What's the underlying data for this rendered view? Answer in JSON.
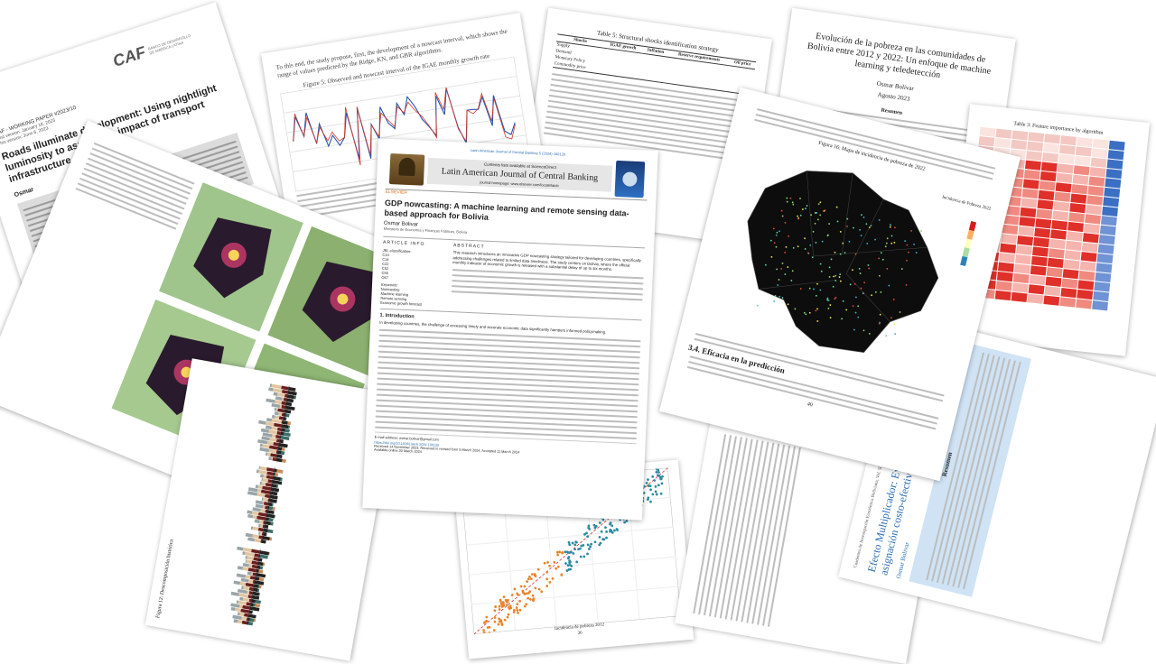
{
  "p1": {
    "logo": "CAF",
    "logo_sub": "BANCO DE DESARROLLO DE AMÉRICA LATINA",
    "series": "CAF - WORKING PAPER #2023/10",
    "first_version": "First version: January 18, 2023",
    "this_version": "This version: June 6, 2023",
    "title": "Roads illuminate development: Using nightlight luminosity to assess the impact of transport infrastructure",
    "author": "Osmar"
  },
  "p3": {
    "intro": "To this end, the study propose, first, the development of a nowcast interval, which shows the range of values predicted by the Ridge, KN, and GBR algorithms.",
    "figure_caption": "Figure 5: Observed and nowcast interval of the IGAE monthly growth rate"
  },
  "p4": {
    "table_caption": "Table 5: Structural shocks identification strategy",
    "columns": [
      "Shocks",
      "IGAE growth",
      "Inflation",
      "Reserve requirements",
      "Oil price"
    ],
    "rows": [
      "Supply",
      "Demand",
      "Monetary Policy",
      "Commodity price"
    ]
  },
  "p5": {
    "title": "Evolución de la pobreza en las comunidades de Bolivia entre 2012 y 2022: Un enfoque de machine learning y teledetección",
    "author": "Osmar Bolivar",
    "date": "Agosto 2023",
    "resumen": "Resumen"
  },
  "p6": {
    "caption": "Table 3: Feature importance by algorithm"
  },
  "p7": {
    "figure": "Figura 16: Mapa de incidencia de pobreza de 2022",
    "legend_title": "Incidencia de Pobreza 2022",
    "section": "3.4. Eficacia en la predicción",
    "page_number": "40"
  },
  "p8": {
    "title": "Efecto Multiplicador: Evidencia empírica para una asignación costo-efectiva de la inversión pública",
    "author": "Osmar Bolivar",
    "resumen": "Resumen",
    "header": "Cuadernos de Investigación Económica Boliviana, Vol. 5(2), Diciembre 2022, 7-44"
  },
  "p9": {
    "ylabel": "Incidencia de pobreza 2022",
    "xlabel": "Incidencia de pobreza 2012",
    "page_number": "36"
  },
  "p10": {
    "caption": "Figura 12: Descomposición histórica"
  },
  "main": {
    "journal_ref": "Latin American Journal of Central Banking 5 (2024) 100126",
    "contents_line": "Contents lists available at ScienceDirect",
    "journal": "Latin American Journal of Central Banking",
    "homepage": "journal homepage: www.elsevier.com/locate/latcb",
    "publisher": "ELSEVIER",
    "title": "GDP nowcasting: A machine learning and remote sensing data-based approach for Bolivia",
    "author": "Osmar Bolivar",
    "affiliation": "Ministerio de Economía y Finanzas Públicas, Bolivia",
    "article_info": "ARTICLE INFO",
    "abstract_head": "ABSTRACT",
    "jel": "JEL classification:",
    "jel_codes": [
      "C14",
      "C14",
      "C22",
      "C52",
      "C55",
      "O47"
    ],
    "keywords_head": "Keywords:",
    "keywords": [
      "Nowcasting",
      "Machine learning",
      "Remote sensing",
      "Economic growth forecast"
    ],
    "abstract": "This research introduces an innovative GDP nowcasting strategy tailored for developing countries, specifically addressing challenges related to limited data timeliness. The study centers on Bolivia, where the official monthly indicator of economic growth is released with a substantial delay of up to six months.",
    "section": "1. Introduction",
    "intro": "In developing countries, the challenge of accessing timely and accurate economic data significantly hampers informed policymaking.",
    "email": "E-mail address: osmar.bolivar@gmail.com",
    "doi": "https://doi.org/10.1016/j.latcb.2024.100126",
    "received": "Received 14 November 2023; Received in revised form 5 March 2024; Accepted 11 March 2024",
    "available": "Available online 30 March 2024"
  },
  "colors": {
    "link_blue": "#2a6db5",
    "map_black": "#111111",
    "heat_red": "#e0302a",
    "heat_blue": "#3a6fc4"
  }
}
